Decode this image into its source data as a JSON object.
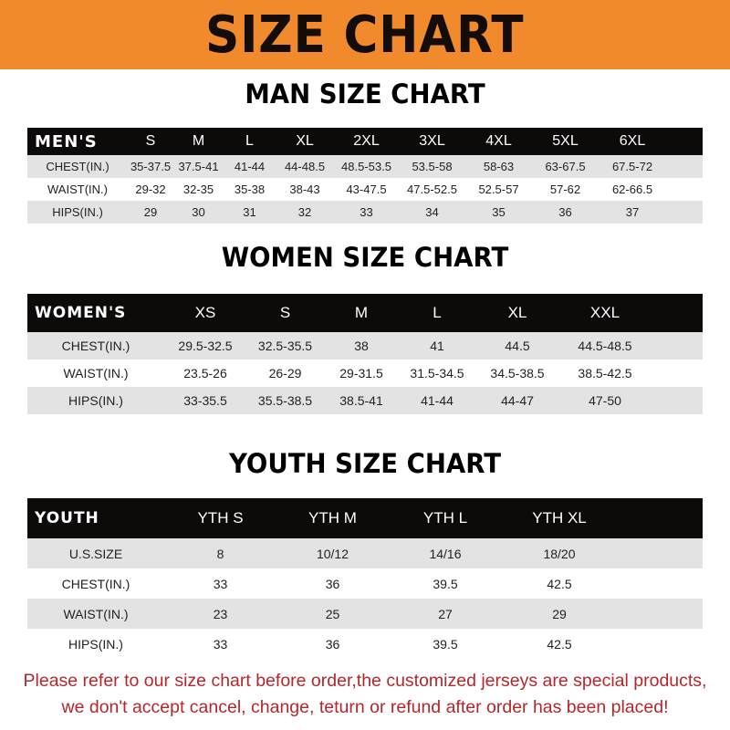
{
  "banner": {
    "title": "SIZE CHART",
    "color": "#f08a2c"
  },
  "men": {
    "title": "MAN SIZE CHART",
    "header": [
      "MEN'S",
      "S",
      "M",
      "L",
      "XL",
      "2XL",
      "3XL",
      "4XL",
      "5XL",
      "6XL"
    ],
    "rows": [
      [
        "CHEST(IN.)",
        "35-37.5",
        "37.5-41",
        "41-44",
        "44-48.5",
        "48.5-53.5",
        "53.5-58",
        "58-63",
        "63-67.5",
        "67.5-72"
      ],
      [
        "WAIST(IN.)",
        "29-32",
        "32-35",
        "35-38",
        "38-43",
        "43-47.5",
        "47.5-52.5",
        "52.5-57",
        "57-62",
        "62-66.5"
      ],
      [
        "HIPS(IN.)",
        "29",
        "30",
        "31",
        "32",
        "33",
        "34",
        "35",
        "36",
        "37"
      ]
    ]
  },
  "women": {
    "title": "WOMEN SIZE CHART",
    "header": [
      "WOMEN'S",
      "XS",
      "S",
      "M",
      "L",
      "XL",
      "XXL"
    ],
    "rows": [
      [
        "CHEST(IN.)",
        "29.5-32.5",
        "32.5-35.5",
        "38",
        "41",
        "44.5",
        "44.5-48.5"
      ],
      [
        "WAIST(IN.)",
        "23.5-26",
        "26-29",
        "29-31.5",
        "31.5-34.5",
        "34.5-38.5",
        "38.5-42.5"
      ],
      [
        "HIPS(IN.)",
        "33-35.5",
        "35.5-38.5",
        "38.5-41",
        "41-44",
        "44-47",
        "47-50"
      ]
    ]
  },
  "youth": {
    "title": "YOUTH SIZE CHART",
    "header": [
      "YOUTH",
      "YTH S",
      "YTH M",
      "YTH L",
      "YTH XL"
    ],
    "rows": [
      [
        "U.S.SIZE",
        "8",
        "10/12",
        "14/16",
        "18/20"
      ],
      [
        "CHEST(IN.)",
        "33",
        "36",
        "39.5",
        "42.5"
      ],
      [
        "WAIST(IN.)",
        "23",
        "25",
        "27",
        "29"
      ],
      [
        "HIPS(IN.)",
        "33",
        "36",
        "39.5",
        "42.5"
      ]
    ]
  },
  "notice": {
    "line1": "Please refer to our size chart before order,the customized jerseys are special products,",
    "line2": "we don't accept cancel, change, teturn or refund after order has been placed!",
    "color": "#b8262b"
  }
}
